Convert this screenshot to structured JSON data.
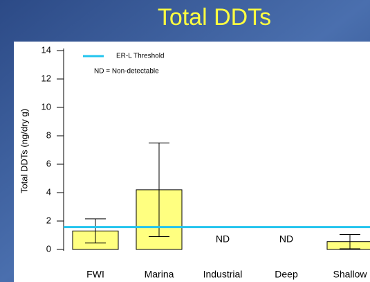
{
  "chart_data": {
    "type": "bar",
    "title": "Total DDTs",
    "y_label": "Total DDTs (ng/dry g)",
    "categories": [
      "FWI",
      "Marina",
      "Industrial",
      "Deep",
      "Shallow"
    ],
    "values": [
      1.3,
      4.2,
      null,
      null,
      0.55
    ],
    "errors": [
      0.85,
      3.3,
      null,
      null,
      0.5
    ],
    "value_labels": [
      null,
      null,
      "ND",
      "ND",
      null
    ],
    "color": "#ffff80",
    "threshold": {
      "name": "ER-L Threshold",
      "value": 1.58,
      "color": "#22c4ee"
    },
    "annotation": "ND = Non-detectable",
    "ylim": [
      0,
      14
    ],
    "yticks": [
      0,
      2,
      4,
      6,
      8,
      10,
      12,
      14
    ]
  }
}
